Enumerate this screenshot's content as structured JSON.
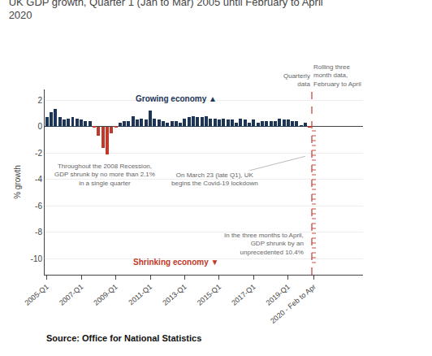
{
  "chart_data": {
    "type": "bar",
    "title": "UK GDP growth, Quarter 1 (Jan to Mar) 2005 until February to April\n2020",
    "y_label": "% growth",
    "source": "Source: Office for National Statistics",
    "annotations": [
      "Growing economy ▲",
      "Shrinking economy ▼",
      "Throughout the 2008 Recession,\nGDP shrunk by no more than 2.1%\nin a single quarter",
      "On March 23 (late Q1), UK\nbegins the Covid-19 lockdown",
      "In the three months to April,\nGDP shrunk by an\nunprecedented 10.4%",
      "Quarterly\ndata",
      "Rolling three\nmonth data,\nFebruary to April"
    ],
    "categories": [
      "2005-Q1",
      null,
      null,
      null,
      null,
      null,
      null,
      null,
      "2007-Q1",
      null,
      null,
      null,
      null,
      null,
      null,
      null,
      "2009-Q1",
      null,
      null,
      null,
      null,
      null,
      null,
      null,
      "2011-Q1",
      null,
      null,
      null,
      null,
      null,
      null,
      null,
      "2013-Q1",
      null,
      null,
      null,
      null,
      null,
      null,
      null,
      "2015-Q1",
      null,
      null,
      null,
      null,
      null,
      null,
      null,
      "2017-Q1",
      null,
      null,
      null,
      null,
      null,
      null,
      null,
      "2019-Q1",
      null,
      null,
      null,
      null,
      null,
      "2020 - Feb to Apr"
    ],
    "values": [
      0.7,
      1.1,
      1.3,
      0.7,
      0.5,
      0.6,
      0.7,
      0.6,
      0.5,
      0.4,
      0.4,
      -0.1,
      -0.7,
      -1.6,
      -2.1,
      -0.5,
      -0.1,
      0.3,
      0.4,
      0.4,
      0.8,
      0.5,
      0.6,
      0.5,
      1.2,
      0.6,
      0.5,
      0.4,
      0.3,
      0.4,
      0.4,
      0.3,
      0.6,
      0.7,
      0.8,
      0.7,
      0.7,
      0.8,
      0.6,
      0.6,
      0.5,
      0.6,
      0.5,
      0.5,
      0.3,
      0.6,
      0.5,
      0.3,
      0.5,
      0.3,
      0.4,
      0.4,
      0.4,
      0.4,
      0.6,
      0.5,
      0.5,
      0.4,
      0.4,
      0.1,
      0.3,
      -0.1,
      -10.4
    ],
    "colors": [
      "#1d3557",
      "#1d3557",
      "#1d3557",
      "#1d3557",
      "#1d3557",
      "#1d3557",
      "#1d3557",
      "#1d3557",
      "#1d3557",
      "#1d3557",
      "#1d3557",
      "#c0392b",
      "#c0392b",
      "#c0392b",
      "#c0392b",
      "#c0392b",
      "#c0392b",
      "#1d3557",
      "#1d3557",
      "#1d3557",
      "#1d3557",
      "#1d3557",
      "#1d3557",
      "#1d3557",
      "#1d3557",
      "#1d3557",
      "#1d3557",
      "#1d3557",
      "#1d3557",
      "#1d3557",
      "#1d3557",
      "#1d3557",
      "#1d3557",
      "#1d3557",
      "#1d3557",
      "#1d3557",
      "#1d3557",
      "#1d3557",
      "#1d3557",
      "#1d3557",
      "#1d3557",
      "#1d3557",
      "#1d3557",
      "#1d3557",
      "#1d3557",
      "#1d3557",
      "#1d3557",
      "#1d3557",
      "#1d3557",
      "#1d3557",
      "#1d3557",
      "#1d3557",
      "#1d3557",
      "#1d3557",
      "#1d3557",
      "#1d3557",
      "#1d3557",
      "#1d3557",
      "#1d3557",
      "#1d3557",
      "#1d3557",
      "#c0392b",
      "#c0392b"
    ],
    "ylim": [
      -11.2,
      2.8
    ],
    "yticks": [
      2,
      0,
      -2,
      -4,
      -6,
      -8,
      -10
    ],
    "grid": true
  }
}
